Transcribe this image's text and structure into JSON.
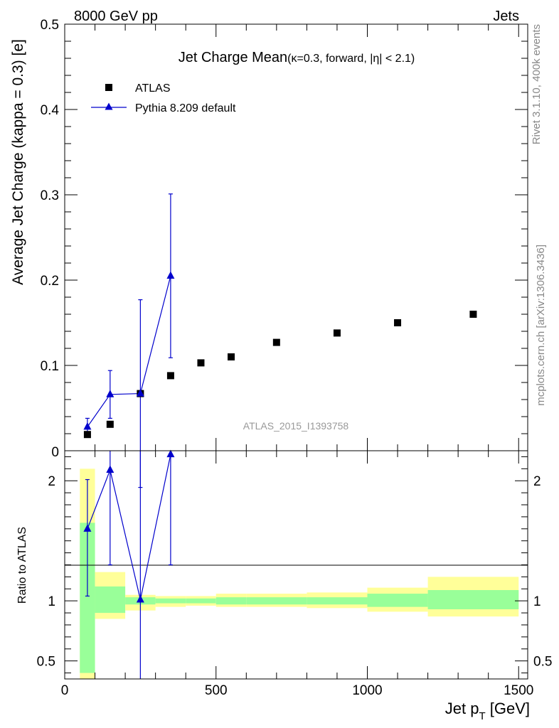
{
  "header": {
    "left": "8000 GeV pp",
    "right": "Jets"
  },
  "side_labels": {
    "rivet": "Rivet 3.1.10,  400k events",
    "mcplots": "mcplots.cern.ch [arXiv:1306.3436]"
  },
  "chart_data": {
    "type": "scatter",
    "title": "Jet Charge Mean",
    "subtitle": "(κ=0.3, forward, |η| < 2.1)",
    "watermark": "ATLAS_2015_I1393758",
    "xlabel": "Jet p",
    "xlabel_sub": "T",
    "xlabel_unit": " [GeV]",
    "ylabel": "Average Jet Charge (kappa = 0.3) [e]",
    "ratio_ylabel": "Ratio to ATLAS",
    "xlim": [
      0,
      1530
    ],
    "ylim": [
      0,
      0.5
    ],
    "ratio_ylim": [
      0.35,
      2.25
    ],
    "x_ticks": [
      0,
      500,
      1000,
      1500
    ],
    "y_ticks": [
      0.1,
      0.2,
      0.3,
      0.4,
      0.5
    ],
    "y_tick_labels": [
      "0.1",
      "0.2",
      "0.3",
      "0.4",
      "0.5"
    ],
    "y_zero_label": "0",
    "ratio_ticks": [
      0.5,
      1,
      2
    ],
    "ratio_tick_labels": [
      "0.5",
      "1",
      "2"
    ],
    "legend": {
      "data_label": "ATLAS",
      "mc_label": "Pythia 8.209 default",
      "position": "top-left"
    },
    "bins": [
      [
        50,
        100
      ],
      [
        100,
        200
      ],
      [
        200,
        300
      ],
      [
        300,
        400
      ],
      [
        400,
        500
      ],
      [
        500,
        600
      ],
      [
        600,
        800
      ],
      [
        800,
        1000
      ],
      [
        1000,
        1200
      ],
      [
        1200,
        1500
      ]
    ],
    "data": {
      "name": "ATLAS",
      "x": [
        75,
        150,
        250,
        350,
        450,
        550,
        700,
        900,
        1100,
        1350
      ],
      "y": [
        0.019,
        0.031,
        0.067,
        0.088,
        0.103,
        0.11,
        0.127,
        0.138,
        0.15,
        0.16
      ]
    },
    "mc": {
      "name": "Pythia 8.209 default",
      "color": "#0000cc",
      "x": [
        75,
        150,
        250,
        350
      ],
      "y": [
        0.028,
        0.066,
        0.067,
        0.205
      ],
      "yerr": [
        0.01,
        0.028,
        0.11,
        0.096
      ]
    },
    "ratio": {
      "mc_x": [
        75,
        150,
        250,
        350
      ],
      "mc_y": [
        1.6,
        2.09,
        1.01,
        2.22
      ],
      "mc_err_lo": [
        1.04,
        1.3,
        0.0,
        1.3
      ],
      "mc_err_hi": [
        2.01,
        2.5,
        2.5,
        2.5
      ],
      "band_inner": [
        [
          0.4,
          1.65
        ],
        [
          0.9,
          1.12
        ],
        [
          0.97,
          1.03
        ],
        [
          0.98,
          1.02
        ],
        [
          0.98,
          1.02
        ],
        [
          0.97,
          1.03
        ],
        [
          0.97,
          1.03
        ],
        [
          0.97,
          1.03
        ],
        [
          0.95,
          1.06
        ],
        [
          0.93,
          1.09
        ]
      ],
      "band_outer": [
        [
          0.35,
          2.1
        ],
        [
          0.85,
          1.24
        ],
        [
          0.92,
          1.05
        ],
        [
          0.95,
          1.04
        ],
        [
          0.96,
          1.04
        ],
        [
          0.95,
          1.06
        ],
        [
          0.95,
          1.06
        ],
        [
          0.94,
          1.07
        ],
        [
          0.91,
          1.11
        ],
        [
          0.87,
          1.2
        ]
      ],
      "inner_color": "#99ff99",
      "outer_color": "#ffff99"
    }
  }
}
